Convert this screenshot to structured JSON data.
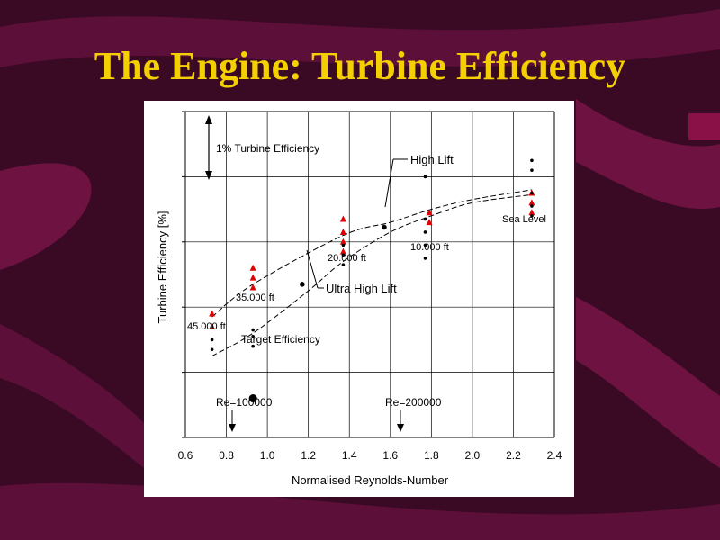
{
  "slide": {
    "title": "The Engine: Turbine Efficiency",
    "colors": {
      "background": "#3a0a24",
      "stripe": "#6e1242",
      "title": "#f4d000",
      "panel": "#ffffff"
    }
  },
  "chart_data": {
    "type": "scatter",
    "xlabel": "Normalised Reynolds-Number",
    "ylabel": "Turbine Efficiency [%]",
    "xlim": [
      0.6,
      2.4
    ],
    "x_ticks": [
      "0.6",
      "0.8",
      "1.0",
      "1.2",
      "1.4",
      "1.6",
      "1.8",
      "2.0",
      "2.2",
      "2.4"
    ],
    "grid": true,
    "series": [
      {
        "name": "High Lift",
        "marker": "red-triangle",
        "color": "#e00000",
        "points": [
          [
            0.73,
            0.38
          ],
          [
            0.73,
            0.34
          ],
          [
            0.93,
            0.52
          ],
          [
            0.93,
            0.49
          ],
          [
            0.93,
            0.46
          ],
          [
            1.37,
            0.67
          ],
          [
            1.37,
            0.63
          ],
          [
            1.37,
            0.6
          ],
          [
            1.37,
            0.57
          ],
          [
            1.79,
            0.69
          ],
          [
            1.79,
            0.66
          ],
          [
            2.29,
            0.75
          ],
          [
            2.29,
            0.72
          ],
          [
            2.29,
            0.69
          ]
        ]
      },
      {
        "name": "Ultra High Lift",
        "marker": "black-dot",
        "color": "#000000",
        "points": [
          [
            0.73,
            0.3
          ],
          [
            0.73,
            0.27
          ],
          [
            0.93,
            0.33
          ],
          [
            0.93,
            0.31
          ],
          [
            0.93,
            0.28
          ],
          [
            1.37,
            0.59
          ],
          [
            1.37,
            0.56
          ],
          [
            1.37,
            0.53
          ],
          [
            1.77,
            0.8
          ],
          [
            1.77,
            0.67
          ],
          [
            1.77,
            0.63
          ],
          [
            1.77,
            0.59
          ],
          [
            1.77,
            0.55
          ],
          [
            2.29,
            0.85
          ],
          [
            2.29,
            0.82
          ],
          [
            2.29,
            0.75
          ],
          [
            2.29,
            0.71
          ],
          [
            2.29,
            0.68
          ]
        ]
      }
    ],
    "curves": [
      {
        "name": "High Lift",
        "style": "dashed",
        "points": [
          [
            0.73,
            0.37
          ],
          [
            0.93,
            0.47
          ],
          [
            1.37,
            0.62
          ],
          [
            1.6,
            0.66
          ],
          [
            1.8,
            0.7
          ],
          [
            2.0,
            0.73
          ],
          [
            2.29,
            0.76
          ]
        ]
      },
      {
        "name": "Ultra High Lift",
        "style": "dashed",
        "points": [
          [
            0.73,
            0.25
          ],
          [
            0.93,
            0.32
          ],
          [
            1.2,
            0.45
          ],
          [
            1.37,
            0.54
          ],
          [
            1.6,
            0.63
          ],
          [
            1.8,
            0.68
          ],
          [
            2.0,
            0.72
          ],
          [
            2.29,
            0.745
          ]
        ]
      }
    ],
    "special_points": [
      {
        "label": "High Lift",
        "x": 1.57,
        "y": 0.645
      },
      {
        "label": "Ultra High Lift",
        "x": 1.17,
        "y": 0.47
      },
      {
        "label": "Target Efficiency",
        "x": 0.93,
        "y": 0.12
      }
    ],
    "annotations": {
      "efficiency_scale": "1% Turbine Efficiency",
      "high_lift": "High Lift",
      "ultra_high_lift": "Ultra High Lift",
      "sea_level": "Sea Level",
      "alt_10000": "10.000 ft",
      "alt_20000": "20.000 ft",
      "alt_35000": "35.000 ft",
      "alt_45000": "45.000 ft",
      "target_efficiency": "Target Efficiency",
      "re_100000": "Re=100000",
      "re_200000": "Re=200000"
    },
    "re_markers": [
      {
        "label": "Re=100000",
        "x": 0.83
      },
      {
        "label": "Re=200000",
        "x": 1.73
      }
    ]
  }
}
